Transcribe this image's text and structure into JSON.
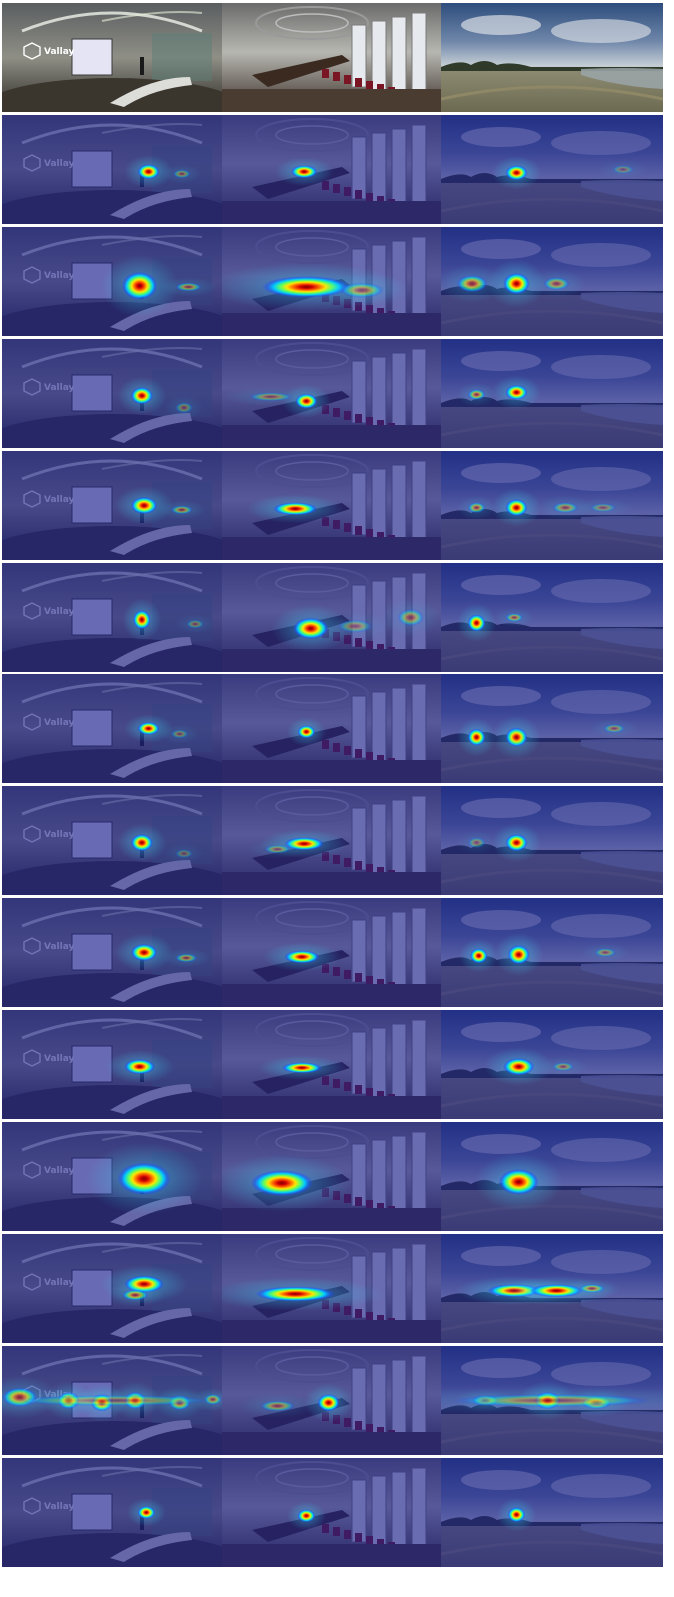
{
  "grid": {
    "rows": 14,
    "cols": 3,
    "scenes": [
      "conference-hall",
      "meeting-room",
      "outdoor-field"
    ],
    "logo_text": "Vallay"
  },
  "heatmaps": [
    {
      "row": 1,
      "spots": [
        [
          [
            0.66,
            0.52,
            0.05,
            0.07,
            1.0
          ],
          [
            0.81,
            0.54,
            0.04,
            0.04,
            0.35
          ]
        ],
        [
          [
            0.37,
            0.52,
            0.06,
            0.06,
            1.0
          ]
        ],
        [
          [
            0.34,
            0.53,
            0.05,
            0.07,
            1.0
          ],
          [
            0.82,
            0.5,
            0.05,
            0.04,
            0.25
          ]
        ]
      ]
    },
    {
      "row": 2,
      "spots": [
        [
          [
            0.62,
            0.54,
            0.08,
            0.13,
            1.0
          ],
          [
            0.84,
            0.55,
            0.06,
            0.04,
            0.45
          ]
        ],
        [
          [
            0.38,
            0.55,
            0.2,
            0.1,
            1.0
          ],
          [
            0.63,
            0.58,
            0.1,
            0.07,
            0.45
          ]
        ],
        [
          [
            0.34,
            0.52,
            0.06,
            0.1,
            1.0
          ],
          [
            0.14,
            0.52,
            0.07,
            0.08,
            0.6
          ],
          [
            0.52,
            0.52,
            0.06,
            0.06,
            0.45
          ]
        ]
      ]
    },
    {
      "row": 3,
      "spots": [
        [
          [
            0.63,
            0.52,
            0.05,
            0.08,
            1.0
          ],
          [
            0.82,
            0.63,
            0.04,
            0.05,
            0.3
          ]
        ],
        [
          [
            0.38,
            0.57,
            0.05,
            0.07,
            1.0
          ],
          [
            0.22,
            0.53,
            0.1,
            0.04,
            0.35
          ]
        ],
        [
          [
            0.34,
            0.49,
            0.05,
            0.07,
            1.0
          ],
          [
            0.16,
            0.51,
            0.04,
            0.05,
            0.55
          ]
        ]
      ]
    },
    {
      "row": 4,
      "spots": [
        [
          [
            0.64,
            0.5,
            0.06,
            0.08,
            1.0
          ],
          [
            0.81,
            0.54,
            0.05,
            0.04,
            0.45
          ]
        ],
        [
          [
            0.33,
            0.53,
            0.1,
            0.06,
            1.0
          ]
        ],
        [
          [
            0.34,
            0.52,
            0.05,
            0.08,
            1.0
          ],
          [
            0.16,
            0.52,
            0.04,
            0.05,
            0.5
          ],
          [
            0.56,
            0.52,
            0.06,
            0.05,
            0.4
          ],
          [
            0.73,
            0.52,
            0.06,
            0.04,
            0.3
          ]
        ]
      ]
    },
    {
      "row": 5,
      "spots": [
        [
          [
            0.63,
            0.52,
            0.04,
            0.09,
            1.0
          ],
          [
            0.87,
            0.56,
            0.04,
            0.04,
            0.3
          ]
        ],
        [
          [
            0.4,
            0.6,
            0.08,
            0.1,
            1.0
          ],
          [
            0.85,
            0.5,
            0.06,
            0.08,
            0.4
          ],
          [
            0.6,
            0.58,
            0.08,
            0.06,
            0.3
          ]
        ],
        [
          [
            0.16,
            0.55,
            0.04,
            0.08,
            1.0
          ],
          [
            0.33,
            0.5,
            0.04,
            0.04,
            0.45
          ]
        ]
      ]
    },
    {
      "row": 6,
      "spots": [
        [
          [
            0.66,
            0.5,
            0.05,
            0.06,
            1.0
          ],
          [
            0.8,
            0.55,
            0.04,
            0.04,
            0.3
          ]
        ],
        [
          [
            0.38,
            0.53,
            0.04,
            0.06,
            1.0
          ]
        ],
        [
          [
            0.16,
            0.58,
            0.04,
            0.08,
            1.0
          ],
          [
            0.34,
            0.58,
            0.05,
            0.09,
            0.95
          ],
          [
            0.78,
            0.5,
            0.05,
            0.04,
            0.35
          ]
        ]
      ]
    },
    {
      "row": 7,
      "spots": [
        [
          [
            0.63,
            0.52,
            0.05,
            0.08,
            1.0
          ],
          [
            0.82,
            0.62,
            0.04,
            0.04,
            0.25
          ]
        ],
        [
          [
            0.37,
            0.53,
            0.09,
            0.06,
            1.0
          ],
          [
            0.25,
            0.58,
            0.06,
            0.04,
            0.35
          ]
        ],
        [
          [
            0.34,
            0.52,
            0.05,
            0.08,
            1.0
          ],
          [
            0.16,
            0.52,
            0.04,
            0.05,
            0.3
          ]
        ]
      ]
    },
    {
      "row": 8,
      "spots": [
        [
          [
            0.64,
            0.5,
            0.06,
            0.08,
            1.0
          ],
          [
            0.83,
            0.55,
            0.05,
            0.04,
            0.45
          ]
        ],
        [
          [
            0.36,
            0.54,
            0.08,
            0.06,
            1.0
          ]
        ],
        [
          [
            0.17,
            0.53,
            0.04,
            0.07,
            1.0
          ],
          [
            0.35,
            0.52,
            0.05,
            0.09,
            1.0
          ],
          [
            0.74,
            0.5,
            0.05,
            0.04,
            0.35
          ]
        ]
      ]
    },
    {
      "row": 9,
      "spots": [
        [
          [
            0.62,
            0.52,
            0.07,
            0.07,
            1.0
          ]
        ],
        [
          [
            0.36,
            0.53,
            0.09,
            0.05,
            1.0
          ]
        ],
        [
          [
            0.35,
            0.52,
            0.07,
            0.08,
            1.0
          ],
          [
            0.55,
            0.52,
            0.05,
            0.04,
            0.35
          ]
        ]
      ]
    },
    {
      "row": 10,
      "spots": [
        [
          [
            0.64,
            0.52,
            0.12,
            0.15,
            1.0
          ]
        ],
        [
          [
            0.27,
            0.56,
            0.14,
            0.12,
            1.0
          ]
        ],
        [
          [
            0.35,
            0.55,
            0.09,
            0.12,
            1.0
          ]
        ]
      ]
    },
    {
      "row": 11,
      "spots": [
        [
          [
            0.64,
            0.46,
            0.09,
            0.08,
            1.0
          ],
          [
            0.6,
            0.56,
            0.06,
            0.05,
            0.6
          ]
        ],
        [
          [
            0.33,
            0.55,
            0.18,
            0.07,
            1.0
          ]
        ],
        [
          [
            0.33,
            0.52,
            0.12,
            0.06,
            1.0
          ],
          [
            0.52,
            0.52,
            0.12,
            0.06,
            1.0
          ],
          [
            0.68,
            0.5,
            0.06,
            0.04,
            0.5
          ]
        ]
      ]
    },
    {
      "row": 12,
      "spots": [
        [
          [
            0.08,
            0.47,
            0.08,
            0.09,
            0.7
          ],
          [
            0.3,
            0.5,
            0.05,
            0.08,
            0.8
          ],
          [
            0.45,
            0.52,
            0.05,
            0.08,
            0.9
          ],
          [
            0.6,
            0.5,
            0.05,
            0.08,
            0.8
          ],
          [
            0.8,
            0.52,
            0.05,
            0.07,
            0.6
          ],
          [
            0.95,
            0.49,
            0.04,
            0.05,
            0.5
          ],
          [
            0.5,
            0.5,
            0.45,
            0.05,
            0.35
          ]
        ],
        [
          [
            0.48,
            0.52,
            0.05,
            0.08,
            1.0
          ],
          [
            0.25,
            0.55,
            0.08,
            0.05,
            0.4
          ]
        ],
        [
          [
            0.48,
            0.5,
            0.06,
            0.08,
            0.9
          ],
          [
            0.2,
            0.5,
            0.06,
            0.05,
            0.5
          ],
          [
            0.7,
            0.52,
            0.07,
            0.06,
            0.6
          ],
          [
            0.5,
            0.5,
            0.45,
            0.06,
            0.4
          ]
        ]
      ]
    },
    {
      "row": 13,
      "spots": [
        [
          [
            0.65,
            0.5,
            0.04,
            0.06,
            1.0
          ]
        ],
        [
          [
            0.38,
            0.53,
            0.04,
            0.06,
            1.0
          ]
        ],
        [
          [
            0.34,
            0.52,
            0.04,
            0.07,
            1.0
          ]
        ]
      ]
    }
  ]
}
